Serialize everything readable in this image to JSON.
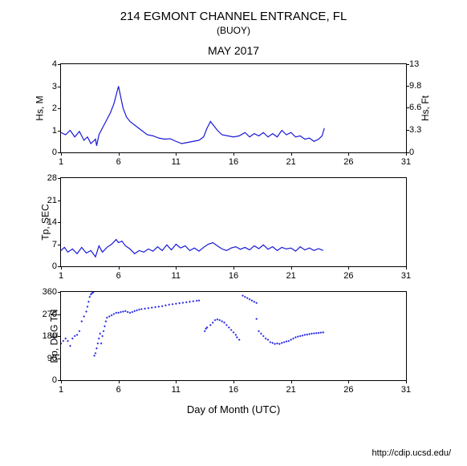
{
  "header": {
    "title": "214 EGMONT CHANNEL ENTRANCE, FL",
    "subtitle": "(BUOY)",
    "period": "MAY 2017"
  },
  "xaxis": {
    "label": "Day of Month (UTC)",
    "min": 1,
    "max": 31,
    "ticks": [
      1,
      6,
      11,
      16,
      21,
      26,
      31
    ]
  },
  "credit": "http://cdip.ucsd.edu/",
  "colors": {
    "line": "#1818d8",
    "marker_fill": "#2a2ae8",
    "axis": "#000000",
    "background": "#ffffff"
  },
  "panel1": {
    "type": "line",
    "ylabel_left": "Hs, M",
    "ylabel_right": "Hs, Ft",
    "ylim_left": [
      0,
      4
    ],
    "yticks_left": [
      0,
      1,
      2,
      3,
      4
    ],
    "ylim_right": [
      0,
      13
    ],
    "yticks_right": [
      0,
      3.3,
      6.6,
      9.8,
      13
    ],
    "line_width": 1.2,
    "data": [
      [
        1.0,
        0.9
      ],
      [
        1.4,
        0.8
      ],
      [
        1.8,
        1.0
      ],
      [
        2.2,
        0.7
      ],
      [
        2.6,
        0.95
      ],
      [
        3.0,
        0.55
      ],
      [
        3.3,
        0.7
      ],
      [
        3.6,
        0.4
      ],
      [
        4.0,
        0.6
      ],
      [
        4.1,
        0.3
      ],
      [
        4.3,
        0.8
      ],
      [
        4.6,
        1.1
      ],
      [
        5.0,
        1.5
      ],
      [
        5.3,
        1.8
      ],
      [
        5.6,
        2.2
      ],
      [
        5.8,
        2.6
      ],
      [
        6.0,
        3.0
      ],
      [
        6.2,
        2.5
      ],
      [
        6.4,
        2.0
      ],
      [
        6.7,
        1.6
      ],
      [
        7.0,
        1.4
      ],
      [
        7.5,
        1.2
      ],
      [
        8.0,
        1.0
      ],
      [
        8.5,
        0.8
      ],
      [
        9.0,
        0.75
      ],
      [
        9.5,
        0.65
      ],
      [
        10.0,
        0.6
      ],
      [
        10.5,
        0.62
      ],
      [
        11.0,
        0.5
      ],
      [
        11.5,
        0.4
      ],
      [
        12.0,
        0.45
      ],
      [
        12.5,
        0.5
      ],
      [
        13.0,
        0.55
      ],
      [
        13.4,
        0.7
      ],
      [
        13.7,
        1.1
      ],
      [
        14.0,
        1.4
      ],
      [
        14.3,
        1.2
      ],
      [
        14.6,
        1.0
      ],
      [
        15.0,
        0.8
      ],
      [
        15.5,
        0.75
      ],
      [
        16.0,
        0.7
      ],
      [
        16.5,
        0.75
      ],
      [
        17.0,
        0.9
      ],
      [
        17.4,
        0.7
      ],
      [
        17.8,
        0.85
      ],
      [
        18.2,
        0.75
      ],
      [
        18.6,
        0.9
      ],
      [
        19.0,
        0.7
      ],
      [
        19.4,
        0.85
      ],
      [
        19.8,
        0.7
      ],
      [
        20.2,
        1.0
      ],
      [
        20.6,
        0.8
      ],
      [
        21.0,
        0.9
      ],
      [
        21.4,
        0.7
      ],
      [
        21.8,
        0.75
      ],
      [
        22.2,
        0.6
      ],
      [
        22.6,
        0.65
      ],
      [
        23.0,
        0.5
      ],
      [
        23.4,
        0.6
      ],
      [
        23.7,
        0.75
      ],
      [
        23.9,
        1.1
      ]
    ]
  },
  "panel2": {
    "type": "line",
    "ylabel_left": "Tp, SEC",
    "ylim_left": [
      0,
      28
    ],
    "yticks_left": [
      0,
      7,
      14,
      21,
      28
    ],
    "line_width": 1.2,
    "data": [
      [
        1.0,
        5.0
      ],
      [
        1.3,
        6.0
      ],
      [
        1.6,
        4.5
      ],
      [
        2.0,
        5.5
      ],
      [
        2.4,
        4.0
      ],
      [
        2.8,
        6.0
      ],
      [
        3.2,
        4.2
      ],
      [
        3.6,
        5.0
      ],
      [
        4.0,
        3.0
      ],
      [
        4.3,
        6.5
      ],
      [
        4.6,
        4.5
      ],
      [
        5.0,
        6.0
      ],
      [
        5.4,
        7.0
      ],
      [
        5.8,
        8.5
      ],
      [
        6.0,
        7.5
      ],
      [
        6.3,
        8.0
      ],
      [
        6.6,
        6.5
      ],
      [
        7.0,
        5.5
      ],
      [
        7.4,
        4.0
      ],
      [
        7.8,
        5.0
      ],
      [
        8.2,
        4.5
      ],
      [
        8.6,
        5.5
      ],
      [
        9.0,
        4.8
      ],
      [
        9.4,
        6.2
      ],
      [
        9.8,
        5.0
      ],
      [
        10.2,
        6.8
      ],
      [
        10.6,
        5.2
      ],
      [
        11.0,
        7.0
      ],
      [
        11.4,
        5.8
      ],
      [
        11.8,
        6.5
      ],
      [
        12.2,
        5.0
      ],
      [
        12.6,
        5.8
      ],
      [
        13.0,
        4.8
      ],
      [
        13.4,
        6.0
      ],
      [
        13.8,
        7.0
      ],
      [
        14.2,
        7.5
      ],
      [
        14.6,
        6.5
      ],
      [
        15.0,
        5.5
      ],
      [
        15.4,
        5.0
      ],
      [
        15.8,
        5.8
      ],
      [
        16.2,
        6.2
      ],
      [
        16.6,
        5.4
      ],
      [
        17.0,
        6.0
      ],
      [
        17.4,
        5.2
      ],
      [
        17.8,
        6.5
      ],
      [
        18.2,
        5.6
      ],
      [
        18.6,
        6.8
      ],
      [
        19.0,
        5.4
      ],
      [
        19.4,
        6.2
      ],
      [
        19.8,
        5.0
      ],
      [
        20.2,
        6.0
      ],
      [
        20.6,
        5.5
      ],
      [
        21.0,
        5.8
      ],
      [
        21.4,
        4.8
      ],
      [
        21.8,
        6.2
      ],
      [
        22.2,
        5.2
      ],
      [
        22.6,
        5.8
      ],
      [
        23.0,
        5.0
      ],
      [
        23.4,
        5.6
      ],
      [
        23.8,
        5.0
      ]
    ]
  },
  "panel3": {
    "type": "scatter",
    "ylabel_left": "Dp, DEG TN",
    "ylim_left": [
      0,
      360
    ],
    "yticks_left": [
      0,
      90,
      180,
      270,
      360
    ],
    "marker_size": 2.0,
    "data": [
      [
        1.0,
        150
      ],
      [
        1.2,
        160
      ],
      [
        1.4,
        170
      ],
      [
        1.6,
        160
      ],
      [
        1.8,
        140
      ],
      [
        2.0,
        170
      ],
      [
        2.2,
        180
      ],
      [
        2.4,
        185
      ],
      [
        2.6,
        200
      ],
      [
        2.8,
        240
      ],
      [
        3.0,
        260
      ],
      [
        3.2,
        280
      ],
      [
        3.3,
        300
      ],
      [
        3.4,
        320
      ],
      [
        3.5,
        340
      ],
      [
        3.6,
        350
      ],
      [
        3.7,
        355
      ],
      [
        3.8,
        358
      ],
      [
        3.9,
        100
      ],
      [
        4.0,
        110
      ],
      [
        4.1,
        130
      ],
      [
        4.2,
        150
      ],
      [
        4.3,
        170
      ],
      [
        4.4,
        190
      ],
      [
        4.5,
        150
      ],
      [
        4.6,
        180
      ],
      [
        4.7,
        200
      ],
      [
        4.8,
        220
      ],
      [
        4.9,
        240
      ],
      [
        5.0,
        255
      ],
      [
        5.2,
        260
      ],
      [
        5.4,
        265
      ],
      [
        5.6,
        270
      ],
      [
        5.8,
        275
      ],
      [
        6.0,
        275
      ],
      [
        6.2,
        278
      ],
      [
        6.4,
        280
      ],
      [
        6.6,
        282
      ],
      [
        6.8,
        278
      ],
      [
        7.0,
        275
      ],
      [
        7.2,
        278
      ],
      [
        7.4,
        282
      ],
      [
        7.6,
        285
      ],
      [
        7.8,
        288
      ],
      [
        8.0,
        290
      ],
      [
        8.3,
        292
      ],
      [
        8.6,
        294
      ],
      [
        8.9,
        296
      ],
      [
        9.2,
        298
      ],
      [
        9.5,
        300
      ],
      [
        9.8,
        302
      ],
      [
        10.1,
        305
      ],
      [
        10.4,
        308
      ],
      [
        10.7,
        310
      ],
      [
        11.0,
        312
      ],
      [
        11.3,
        314
      ],
      [
        11.6,
        316
      ],
      [
        11.9,
        318
      ],
      [
        12.2,
        320
      ],
      [
        12.5,
        322
      ],
      [
        12.8,
        324
      ],
      [
        13.0,
        325
      ],
      [
        13.5,
        200
      ],
      [
        13.6,
        210
      ],
      [
        13.7,
        215
      ],
      [
        14.0,
        225
      ],
      [
        14.2,
        235
      ],
      [
        14.4,
        245
      ],
      [
        14.6,
        248
      ],
      [
        14.8,
        245
      ],
      [
        15.0,
        240
      ],
      [
        15.2,
        235
      ],
      [
        15.4,
        225
      ],
      [
        15.6,
        215
      ],
      [
        15.8,
        205
      ],
      [
        16.0,
        195
      ],
      [
        16.2,
        185
      ],
      [
        16.3,
        175
      ],
      [
        16.5,
        165
      ],
      [
        16.8,
        345
      ],
      [
        17.0,
        340
      ],
      [
        17.2,
        335
      ],
      [
        17.4,
        330
      ],
      [
        17.6,
        325
      ],
      [
        17.8,
        320
      ],
      [
        18.0,
        315
      ],
      [
        18.0,
        250
      ],
      [
        18.2,
        200
      ],
      [
        18.4,
        190
      ],
      [
        18.6,
        180
      ],
      [
        18.8,
        170
      ],
      [
        19.0,
        165
      ],
      [
        19.2,
        155
      ],
      [
        19.4,
        152
      ],
      [
        19.6,
        148
      ],
      [
        19.8,
        150
      ],
      [
        20.0,
        148
      ],
      [
        20.2,
        152
      ],
      [
        20.4,
        155
      ],
      [
        20.6,
        158
      ],
      [
        20.8,
        160
      ],
      [
        21.0,
        165
      ],
      [
        21.2,
        170
      ],
      [
        21.4,
        175
      ],
      [
        21.6,
        178
      ],
      [
        21.8,
        180
      ],
      [
        22.0,
        182
      ],
      [
        22.2,
        185
      ],
      [
        22.4,
        186
      ],
      [
        22.6,
        188
      ],
      [
        22.8,
        190
      ],
      [
        23.0,
        191
      ],
      [
        23.2,
        192
      ],
      [
        23.4,
        193
      ],
      [
        23.6,
        194
      ],
      [
        23.8,
        195
      ]
    ]
  }
}
